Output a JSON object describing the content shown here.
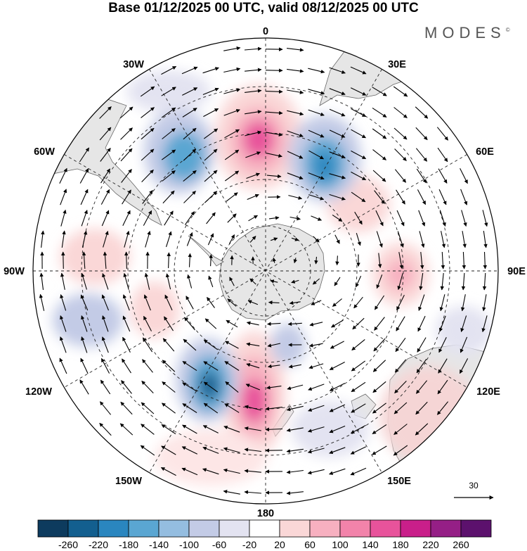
{
  "title": "Base 01/12/2025 00 UTC, valid 08/12/2025 00 UTC",
  "brand": "MODES",
  "brand_mark": "©",
  "longitude_labels": {
    "lon_0": "0",
    "lon_30e": "30E",
    "lon_60e": "60E",
    "lon_90e": "90E",
    "lon_120e": "120E",
    "lon_150e": "150E",
    "lon_180": "180",
    "lon_150w": "150W",
    "lon_120w": "120W",
    "lon_90w": "90W",
    "lon_60w": "60W",
    "lon_30w": "30W"
  },
  "reference_vector": {
    "label": "30"
  },
  "colorbar": {
    "labels": [
      "-260",
      "-220",
      "-180",
      "-140",
      "-100",
      "-60",
      "-20",
      "20",
      "60",
      "100",
      "140",
      "180",
      "220",
      "260"
    ],
    "colors": [
      "#0d3b5e",
      "#135f8f",
      "#2a86bf",
      "#5aa6d2",
      "#94bde0",
      "#c3cbe6",
      "#e3e3f1",
      "#ffffff",
      "#fad7d7",
      "#f7b0c0",
      "#f283aa",
      "#e8539b",
      "#c91f8a",
      "#951f86",
      "#5c116d"
    ]
  },
  "legend": {
    "anomaly_pos_colors": [
      "#fad7d7",
      "#f7b0c0",
      "#f283aa",
      "#e8539b"
    ],
    "anomaly_neg_colors": [
      "#e3e3f1",
      "#c3cbe6",
      "#94bde0",
      "#5aa6d2",
      "#2a86bf"
    ],
    "land_color": "#e6e6e6"
  }
}
